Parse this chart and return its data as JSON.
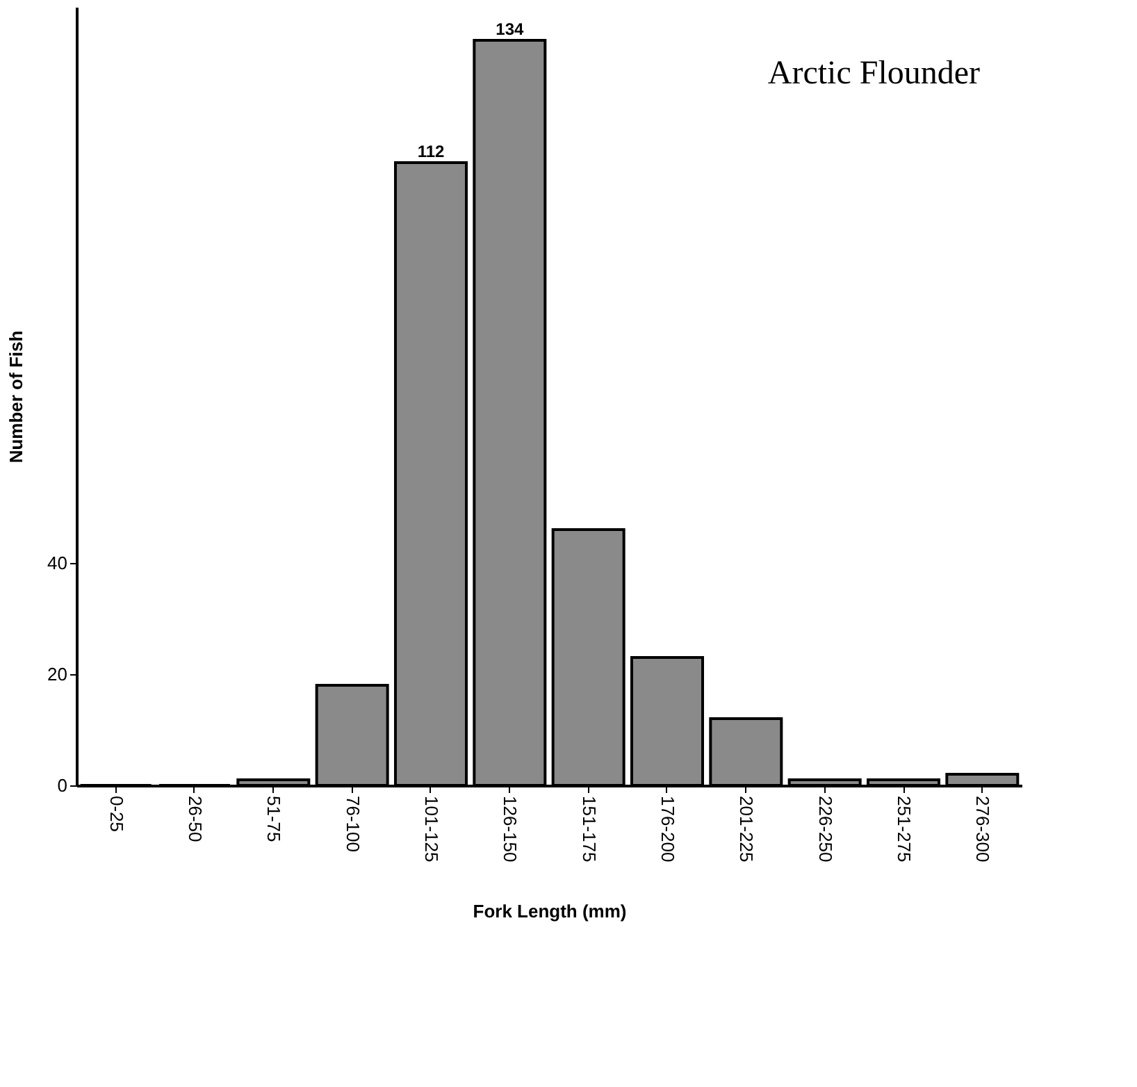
{
  "chart_data": {
    "type": "bar",
    "title": "Arctic Flounder",
    "xlabel": "Fork  Length  (mm)",
    "ylabel": "Number  of  Fish",
    "categories": [
      "0-25",
      "26-50",
      "51-75",
      "76-100",
      "101-125",
      "126-150",
      "151-175",
      "176-200",
      "201-225",
      "226-250",
      "251-275",
      "276-300"
    ],
    "values": [
      0,
      0,
      1,
      18,
      112,
      134,
      46,
      23,
      12,
      1,
      1,
      2
    ],
    "value_labels": [
      null,
      null,
      null,
      null,
      "112",
      "134",
      null,
      null,
      null,
      null,
      null,
      null
    ],
    "color": "#8a8a8a",
    "ylim": [
      0,
      140
    ],
    "yticks": [
      0,
      20,
      40
    ],
    "grid": false
  }
}
